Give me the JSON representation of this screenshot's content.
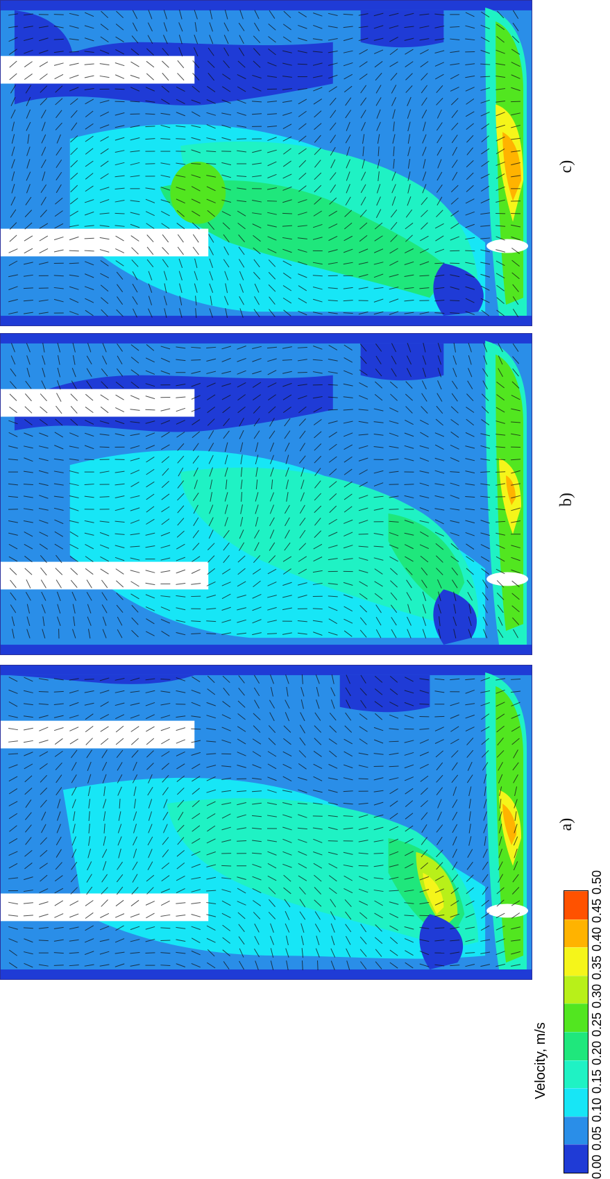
{
  "legend": {
    "title": "Velocity, m/s",
    "ticks": [
      "0.00",
      "0.05",
      "0.10",
      "0.15",
      "0.20",
      "0.25",
      "0.30",
      "0.35",
      "0.40",
      "0.45",
      "0.50"
    ],
    "colors": [
      "#1f3bd6",
      "#2a8ee8",
      "#17e6f6",
      "#1ff2c4",
      "#1fe77c",
      "#52e620",
      "#b8f019",
      "#f5f51a",
      "#ffb300",
      "#ff5200"
    ]
  },
  "panels": [
    {
      "label": "a)"
    },
    {
      "label": "b)"
    },
    {
      "label": "c)"
    }
  ]
}
